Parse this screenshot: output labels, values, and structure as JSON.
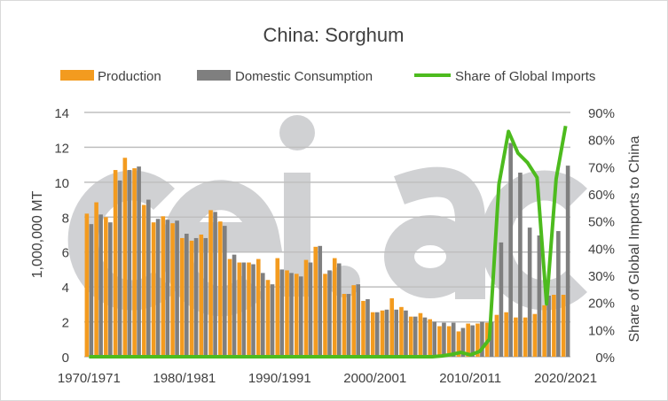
{
  "chart_data": {
    "type": "bar",
    "title": "China: Sorghum",
    "watermark": "cei.ac",
    "ylabel": "1,000,000 MT",
    "y2label": "Share of Global Imports to China",
    "ylim": [
      0,
      14
    ],
    "yticks": [
      "0",
      "2",
      "4",
      "6",
      "8",
      "10",
      "12",
      "14"
    ],
    "y2lim": [
      0,
      90
    ],
    "y2ticks": [
      "0%",
      "10%",
      "20%",
      "30%",
      "40%",
      "50%",
      "60%",
      "70%",
      "80%",
      "90%"
    ],
    "grid": true,
    "legend_position": "top",
    "categories": [
      "1970/1971",
      "1971/1972",
      "1972/1973",
      "1973/1974",
      "1974/1975",
      "1975/1976",
      "1976/1977",
      "1977/1978",
      "1978/1979",
      "1979/1980",
      "1980/1981",
      "1981/1982",
      "1982/1983",
      "1983/1984",
      "1984/1985",
      "1985/1986",
      "1986/1987",
      "1987/1988",
      "1988/1989",
      "1989/1990",
      "1990/1991",
      "1991/1992",
      "1992/1993",
      "1993/1994",
      "1994/1995",
      "1995/1996",
      "1996/1997",
      "1997/1998",
      "1998/1999",
      "1999/2000",
      "2000/2001",
      "2001/2002",
      "2002/2003",
      "2003/2004",
      "2004/2005",
      "2005/2006",
      "2006/2007",
      "2007/2008",
      "2008/2009",
      "2009/2010",
      "2010/2011",
      "2011/2012",
      "2012/2013",
      "2013/2014",
      "2014/2015",
      "2015/2016",
      "2016/2017",
      "2017/2018",
      "2018/2019",
      "2019/2020",
      "2020/2021"
    ],
    "tick_labels": [
      "1970/1971",
      "1980/1981",
      "1990/1991",
      "2000/2001",
      "2010/2011",
      "2020/2021"
    ],
    "series": [
      {
        "name": "Production",
        "type": "bar",
        "axis": "left",
        "color": "#F39B1F",
        "values": [
          8.2,
          8.85,
          8.0,
          10.7,
          11.4,
          10.8,
          8.7,
          7.7,
          8.05,
          7.65,
          6.8,
          6.65,
          7.0,
          8.4,
          7.75,
          5.6,
          5.4,
          5.4,
          5.6,
          4.4,
          5.65,
          4.95,
          4.75,
          5.55,
          6.3,
          4.75,
          5.65,
          3.6,
          4.1,
          3.2,
          2.55,
          2.65,
          3.35,
          2.85,
          2.3,
          2.5,
          2.15,
          1.75,
          1.75,
          1.45,
          1.9,
          1.9,
          1.95,
          2.4,
          2.55,
          2.25,
          2.25,
          2.45,
          2.95,
          3.55,
          3.55
        ]
      },
      {
        "name": "Domestic Consumption",
        "type": "bar",
        "axis": "left",
        "color": "#7F7F7F",
        "values": [
          7.6,
          8.15,
          7.7,
          10.1,
          10.7,
          10.9,
          9.0,
          7.9,
          7.85,
          7.8,
          7.05,
          6.8,
          6.8,
          8.3,
          7.5,
          5.85,
          5.4,
          5.3,
          4.8,
          4.15,
          5.0,
          4.8,
          4.6,
          5.4,
          6.35,
          4.95,
          5.35,
          3.6,
          4.15,
          3.3,
          2.55,
          2.7,
          2.7,
          2.65,
          2.3,
          2.25,
          2.0,
          1.95,
          1.95,
          1.65,
          1.8,
          2.0,
          2.0,
          6.55,
          12.25,
          10.55,
          7.4,
          6.95,
          3.5,
          7.2,
          10.95
        ]
      },
      {
        "name": "Share of Global Imports",
        "type": "line",
        "axis": "right",
        "color": "#4DBB1E",
        "values": [
          0,
          0,
          0,
          0,
          0,
          0,
          0,
          0,
          0,
          0,
          0,
          0,
          0,
          0,
          0,
          0,
          0,
          0,
          0,
          0,
          0,
          0,
          0,
          0,
          0,
          0,
          0,
          0,
          0,
          0,
          0,
          0,
          0,
          0,
          0,
          0,
          0,
          0.3,
          0.8,
          1.6,
          0.7,
          2,
          6.5,
          63.5,
          83,
          75,
          71.5,
          66,
          19.5,
          65.5,
          85
        ]
      }
    ]
  }
}
